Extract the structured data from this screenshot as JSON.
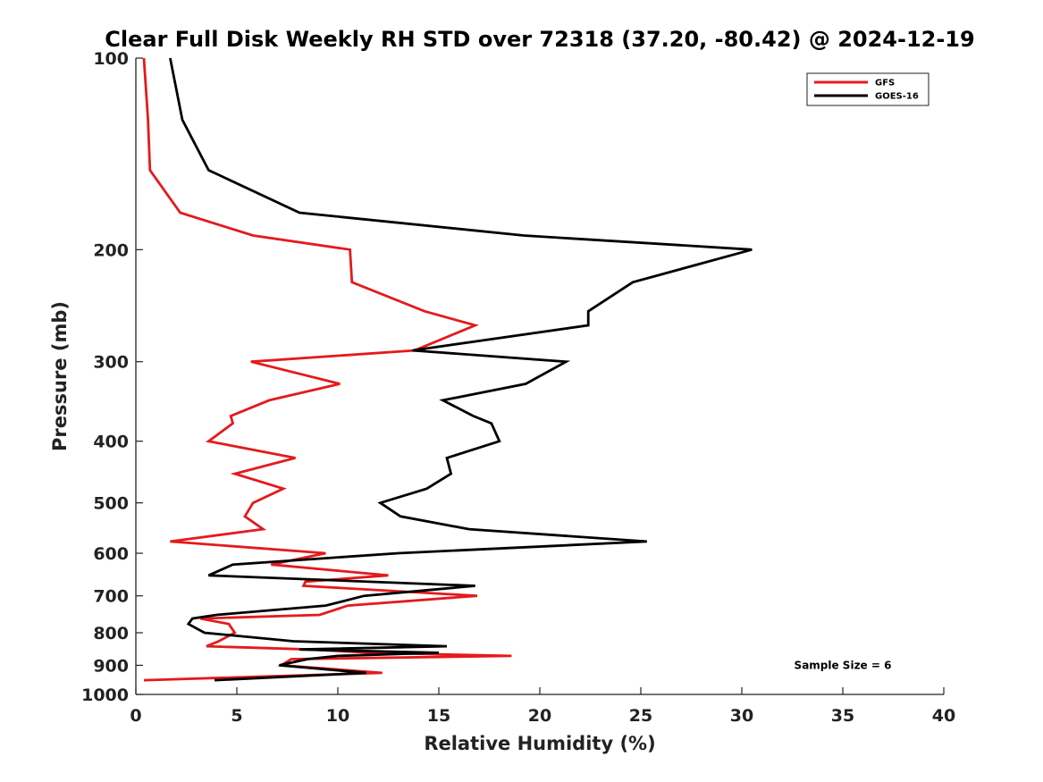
{
  "chart_data": {
    "type": "line",
    "title": "Clear Full Disk Weekly RH STD over 72318 (37.20, -80.42) @ 2024-12-19",
    "xlabel": "Relative Humidity (%)",
    "ylabel": "Pressure (mb)",
    "xlim": [
      0,
      40
    ],
    "ylim": [
      100,
      1000
    ],
    "yscale": "log",
    "y_reversed": true,
    "xticks": [
      0,
      5,
      10,
      15,
      20,
      25,
      30,
      35,
      40
    ],
    "yticks": [
      100,
      200,
      300,
      400,
      500,
      600,
      700,
      800,
      900,
      1000
    ],
    "grid": false,
    "legend_position": "top-right",
    "annotation": "Sample Size = 6",
    "series": [
      {
        "name": "GFS",
        "color": "#e41a1c",
        "points": [
          [
            0.4,
            100
          ],
          [
            0.6,
            125
          ],
          [
            0.7,
            150
          ],
          [
            2.2,
            175
          ],
          [
            5.8,
            190
          ],
          [
            10.6,
            200
          ],
          [
            10.7,
            225
          ],
          [
            14.3,
            250
          ],
          [
            16.8,
            263
          ],
          [
            13.8,
            288
          ],
          [
            5.7,
            300
          ],
          [
            10.1,
            325
          ],
          [
            6.6,
            345
          ],
          [
            4.7,
            365
          ],
          [
            4.8,
            375
          ],
          [
            3.6,
            400
          ],
          [
            7.9,
            425
          ],
          [
            4.9,
            450
          ],
          [
            7.3,
            475
          ],
          [
            5.8,
            500
          ],
          [
            5.4,
            525
          ],
          [
            6.3,
            550
          ],
          [
            1.7,
            575
          ],
          [
            9.4,
            600
          ],
          [
            6.7,
            625
          ],
          [
            12.5,
            650
          ],
          [
            8.4,
            665
          ],
          [
            8.3,
            675
          ],
          [
            16.9,
            700
          ],
          [
            10.5,
            725
          ],
          [
            9.1,
            750
          ],
          [
            3.2,
            760
          ],
          [
            4.6,
            775
          ],
          [
            4.9,
            800
          ],
          [
            4.1,
            825
          ],
          [
            3.5,
            840
          ],
          [
            8.6,
            850
          ],
          [
            11.6,
            860
          ],
          [
            18.6,
            870
          ],
          [
            7.7,
            880
          ],
          [
            7.2,
            900
          ],
          [
            12.2,
            925
          ],
          [
            0.4,
            950
          ]
        ]
      },
      {
        "name": "GOES-16",
        "color": "#000000",
        "points": [
          [
            1.7,
            100
          ],
          [
            2.3,
            125
          ],
          [
            3.6,
            150
          ],
          [
            8.1,
            175
          ],
          [
            19.2,
            190
          ],
          [
            30.5,
            200
          ],
          [
            24.6,
            225
          ],
          [
            22.4,
            250
          ],
          [
            22.4,
            263
          ],
          [
            13.7,
            288
          ],
          [
            21.3,
            300
          ],
          [
            19.3,
            325
          ],
          [
            15.2,
            345
          ],
          [
            16.7,
            365
          ],
          [
            17.6,
            375
          ],
          [
            18.0,
            400
          ],
          [
            15.4,
            425
          ],
          [
            15.6,
            450
          ],
          [
            14.4,
            475
          ],
          [
            12.1,
            500
          ],
          [
            13.1,
            525
          ],
          [
            16.5,
            550
          ],
          [
            25.3,
            575
          ],
          [
            13.0,
            600
          ],
          [
            4.8,
            625
          ],
          [
            3.6,
            650
          ],
          [
            16.8,
            675
          ],
          [
            11.3,
            700
          ],
          [
            9.4,
            725
          ],
          [
            4.0,
            750
          ],
          [
            2.8,
            760
          ],
          [
            2.6,
            775
          ],
          [
            3.4,
            800
          ],
          [
            7.8,
            825
          ],
          [
            15.4,
            840
          ],
          [
            8.1,
            850
          ],
          [
            15.0,
            860
          ],
          [
            10.0,
            870
          ],
          [
            8.5,
            880
          ],
          [
            7.1,
            900
          ],
          [
            11.4,
            925
          ],
          [
            3.9,
            950
          ]
        ]
      }
    ]
  }
}
